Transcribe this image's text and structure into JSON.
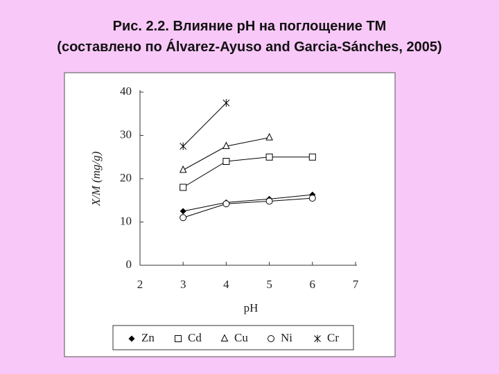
{
  "title": [
    "Рис. 2.2. Влияние pH на поглощение ТМ",
    "(составлено по Álvarez-Ayuso and Garcia-Sánches, 2005)"
  ],
  "chart_data": {
    "type": "line",
    "xlabel": "pH",
    "ylabel": "X/M (mg/g)",
    "x": [
      3,
      4,
      5,
      6
    ],
    "series": [
      {
        "name": "Zn",
        "color": "#000000",
        "marker": "diamond",
        "values": [
          12.5,
          14.5,
          15.3,
          16.3
        ]
      },
      {
        "name": "Cd",
        "color": "#000000",
        "marker": "square",
        "values": [
          18,
          24,
          25,
          25
        ]
      },
      {
        "name": "Cu",
        "color": "#000000",
        "marker": "triangle",
        "values": [
          22,
          27.5,
          29.5,
          null
        ]
      },
      {
        "name": "Ni",
        "color": "#000000",
        "marker": "circle",
        "values": [
          11,
          14.2,
          14.8,
          15.5
        ]
      },
      {
        "name": "Cr",
        "color": "#000000",
        "marker": "star",
        "values": [
          27.5,
          37.5,
          null,
          null
        ]
      }
    ],
    "xlim": [
      2,
      7
    ],
    "xticks": [
      2,
      3,
      4,
      5,
      6,
      7
    ],
    "ylim": [
      0,
      40
    ],
    "yticks": [
      0,
      10,
      20,
      30,
      40
    ],
    "legend": "bottom"
  }
}
